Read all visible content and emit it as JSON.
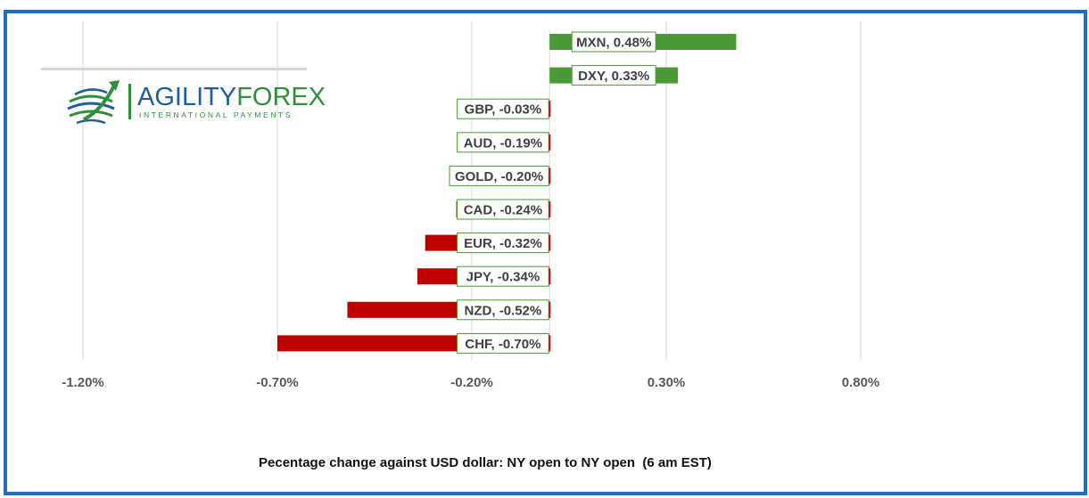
{
  "chart_data": {
    "type": "bar",
    "orientation": "horizontal",
    "categories": [
      "MXN",
      "DXY",
      "GBP",
      "AUD",
      "GOLD",
      "CAD",
      "EUR",
      "JPY",
      "NZD",
      "CHF"
    ],
    "values": [
      0.48,
      0.33,
      -0.03,
      -0.19,
      -0.2,
      -0.24,
      -0.32,
      -0.34,
      -0.52,
      -0.7
    ],
    "data_labels": [
      "MXN, 0.48%",
      "DXY, 0.33%",
      "GBP, -0.03%",
      "AUD, -0.19%",
      "GOLD, -0.20%",
      "CAD, -0.24%",
      "EUR, -0.32%",
      "JPY, -0.34%",
      "NZD, -0.52%",
      "CHF, -0.70%"
    ],
    "x_ticks": [
      -1.2,
      -0.7,
      -0.2,
      0.3,
      0.8
    ],
    "x_tick_labels": [
      "-1.20%",
      "-0.70%",
      "-0.20%",
      "0.30%",
      "0.80%"
    ],
    "xlim": [
      -1.2,
      1.4
    ],
    "grid": true,
    "colors": {
      "positive": "#4a9a36",
      "negative": "#c00000",
      "grid": "#d9d9d9",
      "label_border": "#4a9a36"
    },
    "xlabel": "Pecentage change against USD dollar: NY open to NY open  (6 am EST)"
  },
  "logo": {
    "brand_part1": "AGILITY",
    "brand_part2": "FOREX",
    "tagline": "INTERNATIONAL PAYMENTS",
    "icon": "globe-arrow-icon"
  }
}
